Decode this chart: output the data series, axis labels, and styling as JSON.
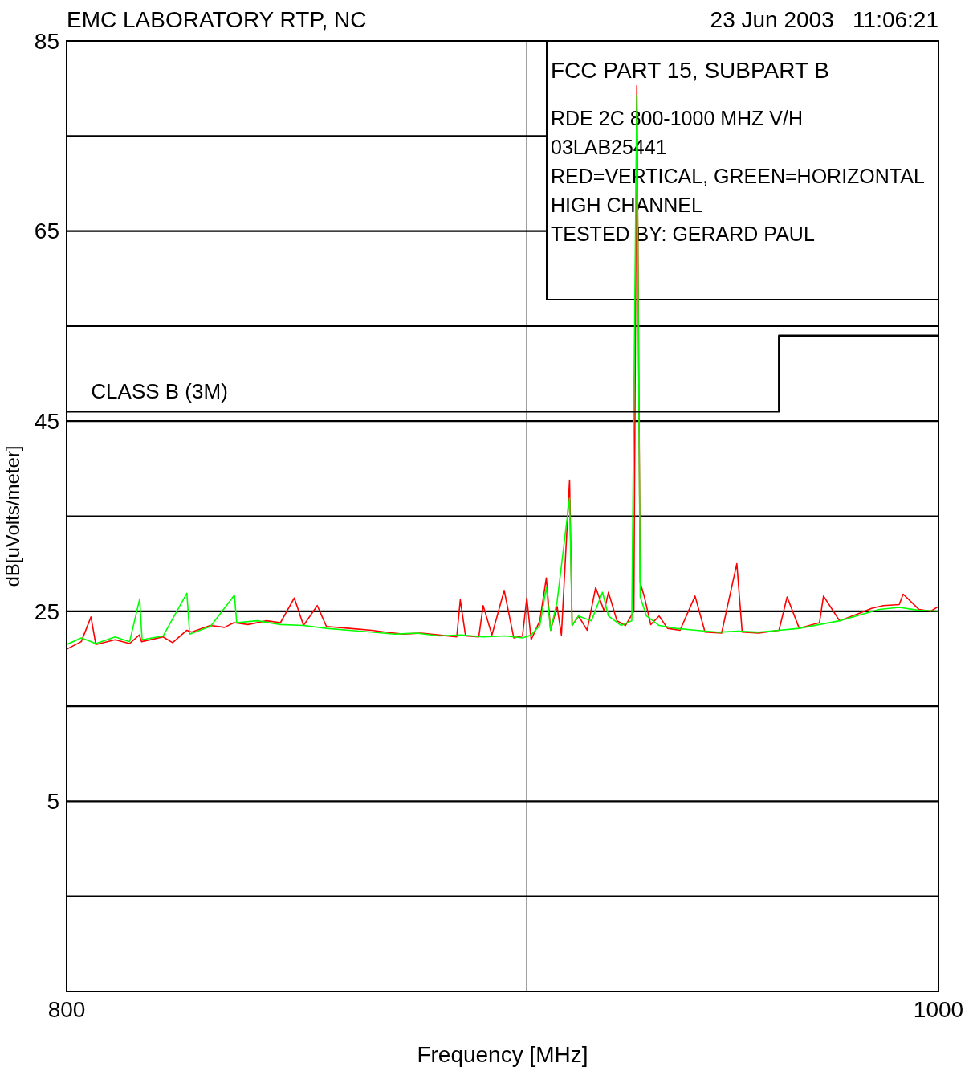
{
  "chart_data": {
    "type": "line",
    "title": "EMC LABORATORY RTP, NC",
    "subtitle": "23 Jun 2003   11:06:21",
    "xlabel": "Frequency [MHz]",
    "ylabel": "dB[uVolts/meter]",
    "log": "x",
    "grid": "y",
    "xlim": [
      800,
      1000
    ],
    "xticks": [
      800,
      1000
    ],
    "ref_lines": [
      {
        "axis": "x",
        "value": 900,
        "color": "#000000"
      }
    ],
    "ylim": [
      -15,
      85
    ],
    "yticks": [
      85,
      {
        "value": 75,
        "label": null
      },
      65,
      {
        "value": 55,
        "label": null
      },
      45,
      {
        "value": 35,
        "label": null
      },
      25,
      {
        "value": 15,
        "label": null
      },
      5,
      {
        "value": -5,
        "label": null
      },
      {
        "value": -15,
        "label": null
      }
    ],
    "annotations": [
      "FCC PART 15, SUBPART B",
      "RDE 2C 800-1000 MHZ V/H",
      "03LAB25441",
      "RED=VERTICAL, GREEN=HORIZONTAL",
      "HIGH CHANNEL",
      "TESTED BY: GERARD PAUL",
      {
        "text": "CLASS B (3M)",
        "x": 805,
        "y": 46
      }
    ],
    "series": [
      {
        "color": "#ff0000",
        "x": [
          800,
          803,
          805,
          806,
          810,
          813,
          815,
          815.5,
          820,
          822,
          825,
          826,
          830,
          833,
          835,
          838,
          842,
          845,
          848,
          850,
          853,
          855,
          860,
          865,
          868,
          872,
          876,
          880,
          884,
          884.8,
          886,
          889,
          890,
          892,
          894.8,
          897,
          899,
          900,
          901,
          903,
          904.5,
          905.5,
          907,
          908,
          909.9,
          910.5,
          912,
          914,
          916,
          918,
          919,
          921,
          923,
          925,
          925.7,
          926.5,
          927.5,
          929,
          931,
          933,
          936,
          939.6,
          942,
          946,
          949.7,
          951,
          955,
          960,
          962,
          965,
          970,
          971,
          975,
          980,
          983,
          986,
          990,
          991,
          995,
          998,
          1000
        ],
        "values": [
          21,
          21.8,
          24.4,
          21.5,
          22,
          21.6,
          22.5,
          21.8,
          22.3,
          21.7,
          23,
          22.8,
          23.5,
          23.3,
          23.8,
          23.6,
          24,
          23.8,
          26.4,
          23.5,
          25.6,
          23.4,
          23.2,
          23,
          22.8,
          22.6,
          22.7,
          22.5,
          22.3,
          26.2,
          22.4,
          22.3,
          25.6,
          22.5,
          27.2,
          22.2,
          22.4,
          26.4,
          22,
          24,
          28.5,
          23,
          25.5,
          22.5,
          38.8,
          23.5,
          24.5,
          23,
          27.5,
          25,
          27,
          24,
          23.5,
          25,
          80.3,
          28,
          26.5,
          23.6,
          24.5,
          23.2,
          23,
          26.6,
          22.8,
          22.7,
          30,
          22.8,
          22.7,
          23,
          26.5,
          23.2,
          23.8,
          26.6,
          24,
          24.8,
          25.3,
          25.6,
          25.7,
          26.8,
          25.2,
          25,
          25.5
        ]
      },
      {
        "color": "#00ff00",
        "x": [
          800,
          803,
          806,
          810,
          813,
          815.1,
          815.6,
          820,
          825,
          825.6,
          830,
          835.1,
          835.6,
          840,
          845,
          850,
          855,
          860,
          865,
          870,
          875,
          880,
          885,
          890,
          895,
          899,
          901,
          903,
          904.5,
          905.5,
          907,
          909.9,
          910.5,
          912,
          915,
          917.6,
          919,
          922,
          924.5,
          925.7,
          926.5,
          928,
          931,
          935,
          940,
          945,
          950,
          955,
          960,
          965,
          970,
          975,
          980,
          985,
          990,
          995,
          1000
        ],
        "values": [
          21.5,
          22.2,
          21.6,
          22.3,
          21.8,
          26.3,
          22,
          22.4,
          26.9,
          22.6,
          23.4,
          26.7,
          23.8,
          24,
          23.6,
          23.5,
          23.2,
          23,
          22.8,
          22.6,
          22.7,
          22.4,
          22.5,
          22.3,
          22.4,
          22.2,
          22.5,
          23.5,
          27.5,
          23,
          26,
          36.9,
          23.5,
          24.5,
          24,
          27,
          24.5,
          23.5,
          24,
          79.3,
          26.5,
          24.5,
          23.5,
          23.2,
          23,
          22.8,
          22.9,
          22.8,
          23,
          23.2,
          23.6,
          24,
          24.6,
          25.2,
          25.4,
          25.1,
          25
        ]
      },
      {
        "type": "step",
        "color": "#000000",
        "x": [
          800,
          960,
          1000
        ],
        "values": [
          46,
          54,
          54
        ]
      }
    ]
  }
}
